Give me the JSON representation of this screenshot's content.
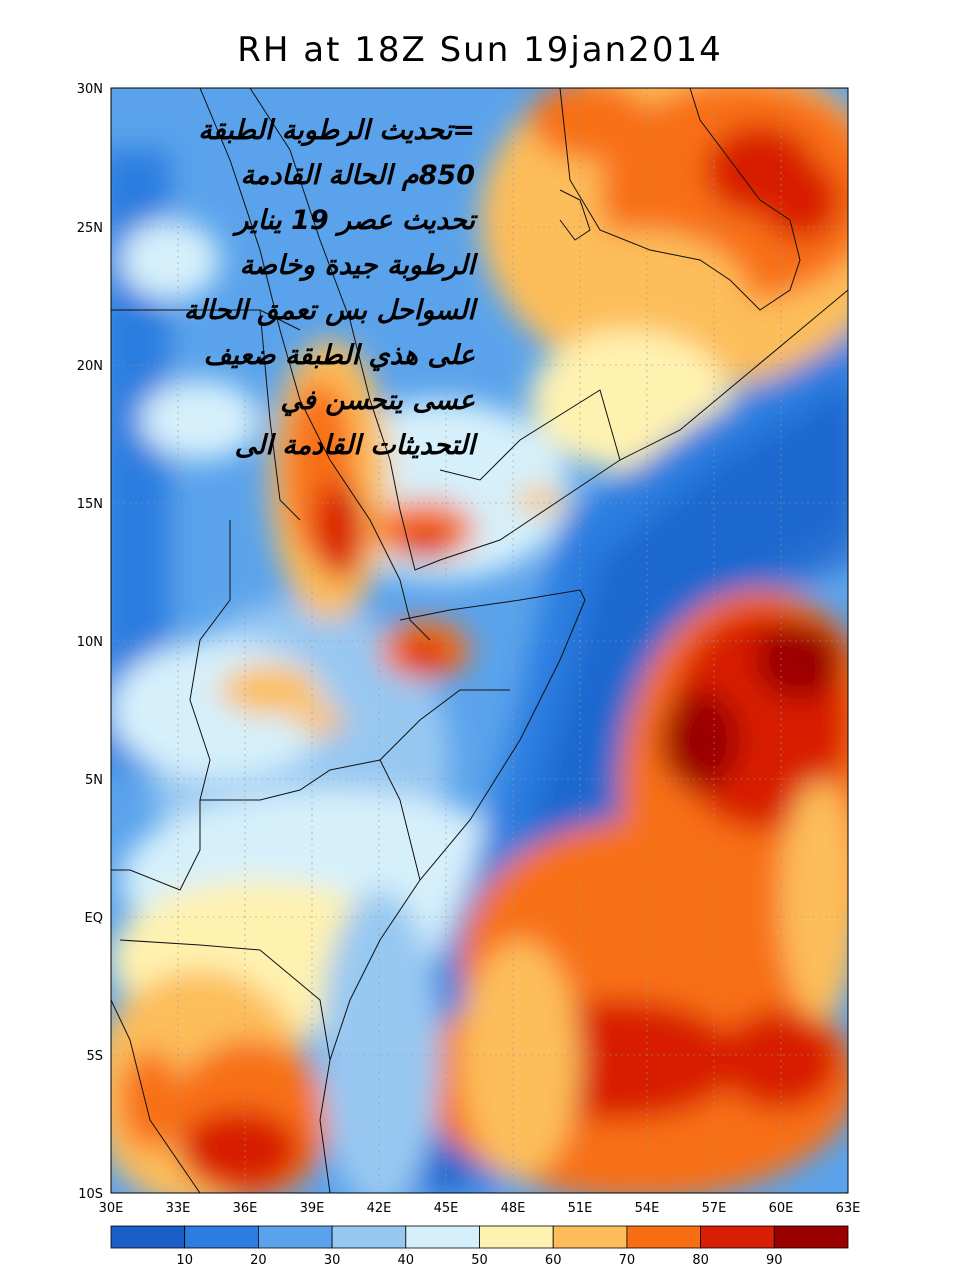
{
  "title": "RH at 18Z Sun 19jan2014",
  "annotation_lines": [
    "=تحديث الرطوبة الطبقة",
    "850م الحالة القادمة",
    "تحديث عصر 19 يناير",
    "الرطوبة جيدة وخاصة",
    "السواحل بس تعمق الحالة",
    "على هذي الطبقة ضعيف",
    "عسى يتحسن في",
    "التحديثات القادمة الى"
  ],
  "lat_labels": [
    "30N",
    "25N",
    "20N",
    "15N",
    "10N",
    "5N",
    "EQ",
    "5S",
    "10S"
  ],
  "lon_labels": [
    "30E",
    "33E",
    "36E",
    "39E",
    "42E",
    "45E",
    "48E",
    "51E",
    "54E",
    "57E",
    "60E",
    "63E"
  ],
  "colorbar": {
    "ticks": [
      "10",
      "20",
      "30",
      "40",
      "50",
      "60",
      "70",
      "80",
      "90"
    ],
    "colors": [
      "#1a5fc8",
      "#2b7de0",
      "#5aa3ec",
      "#97c8f2",
      "#d6f0fb",
      "#fff2b0",
      "#fdbd5a",
      "#f86f13",
      "#d81e05",
      "#9b0000"
    ]
  }
}
